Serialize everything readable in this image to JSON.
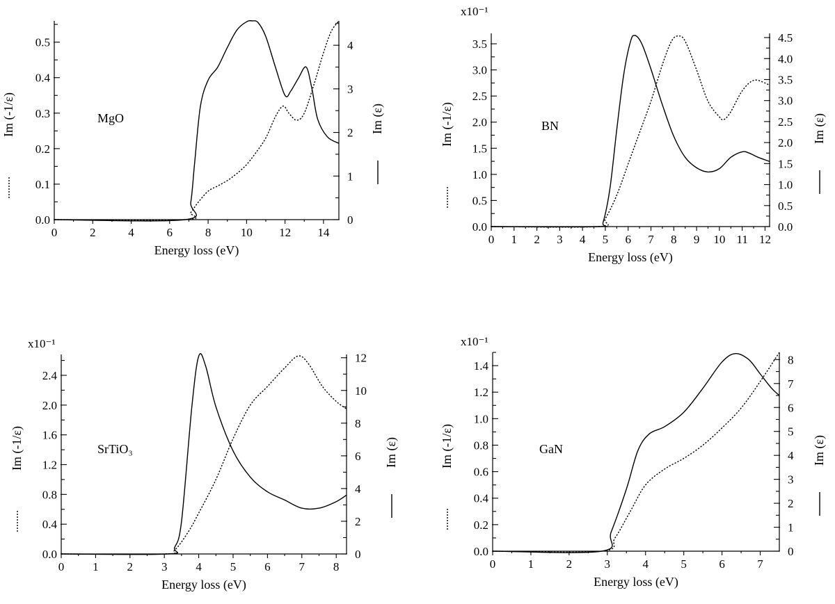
{
  "chart_data": [
    {
      "type": "line",
      "material": "MgO",
      "xlabel": "Energy loss (eV)",
      "ylabel_left": "Im (-1/ε)",
      "ylabel_right": "Im (ε)",
      "sci_label": "",
      "xlim": [
        0,
        14.8
      ],
      "ylim_left": [
        0,
        0.56
      ],
      "ylim_right": [
        0,
        4.56
      ],
      "xticks": [
        0,
        2,
        4,
        6,
        8,
        10,
        12,
        14
      ],
      "xtick_labels": [
        "0",
        "2",
        "4",
        "6",
        "8",
        "10",
        "12",
        "14"
      ],
      "yticks_left": [
        0,
        0.1,
        0.2,
        0.3,
        0.4,
        0.5
      ],
      "ytick_labels_left": [
        "0.0",
        "0.1",
        "0.2",
        "0.3",
        "0.4",
        "0.5"
      ],
      "yticks_right": [
        0,
        1,
        2,
        3,
        4
      ],
      "ytick_labels_right": [
        "0",
        "1",
        "2",
        "3",
        "4"
      ],
      "series": [
        {
          "name": "Im (-1/ε)",
          "style": "dotted",
          "axis": "left",
          "x": [
            0,
            6.8,
            7.1,
            7.5,
            8.0,
            8.5,
            9.0,
            9.5,
            10.0,
            10.5,
            11.0,
            11.5,
            11.9,
            12.2,
            12.6,
            13.0,
            13.5,
            14.0,
            14.4,
            14.8
          ],
          "y": [
            0,
            0,
            0.02,
            0.05,
            0.08,
            0.095,
            0.11,
            0.13,
            0.155,
            0.19,
            0.23,
            0.29,
            0.32,
            0.3,
            0.28,
            0.3,
            0.38,
            0.47,
            0.53,
            0.56
          ]
        },
        {
          "name": "Im (ε)",
          "style": "solid",
          "axis": "right",
          "x": [
            0,
            6.8,
            7.1,
            7.3,
            7.6,
            8.0,
            8.5,
            9.0,
            9.5,
            10.0,
            10.3,
            10.6,
            11.0,
            11.5,
            12.0,
            12.3,
            12.7,
            13.1,
            13.4,
            13.7,
            14.2,
            14.8
          ],
          "y": [
            0,
            0,
            0.4,
            1.3,
            2.6,
            3.2,
            3.5,
            3.95,
            4.35,
            4.54,
            4.56,
            4.52,
            4.2,
            3.5,
            2.85,
            2.95,
            3.25,
            3.5,
            3.0,
            2.3,
            1.9,
            1.75
          ]
        }
      ]
    },
    {
      "type": "line",
      "material": "BN",
      "xlabel": "Energy loss (eV)",
      "ylabel_left": "Im (-1/ε)",
      "ylabel_right": "Im (ε)",
      "sci_label": "x10⁻¹",
      "xlim": [
        0,
        12.2
      ],
      "ylim_left": [
        0,
        3.7
      ],
      "ylim_right": [
        0,
        4.6
      ],
      "xticks": [
        0,
        1,
        2,
        3,
        4,
        5,
        6,
        7,
        8,
        9,
        10,
        11,
        12
      ],
      "xtick_labels": [
        "0",
        "1",
        "2",
        "3",
        "4",
        "5",
        "6",
        "7",
        "8",
        "9",
        "10",
        "11",
        "12"
      ],
      "yticks_left": [
        0,
        0.5,
        1.0,
        1.5,
        2.0,
        2.5,
        3.0,
        3.5
      ],
      "ytick_labels_left": [
        "0.0",
        "0.5",
        "1.0",
        "1.5",
        "2.0",
        "2.5",
        "3.0",
        "3.5"
      ],
      "yticks_right": [
        0,
        0.5,
        1.0,
        1.5,
        2.0,
        2.5,
        3.0,
        3.5,
        4.0,
        4.5
      ],
      "ytick_labels_right": [
        "0.0",
        "0.5",
        "1.0",
        "1.5",
        "2.0",
        "2.5",
        "3.0",
        "3.5",
        "4.0",
        "4.5"
      ],
      "series": [
        {
          "name": "Im (-1/ε)",
          "style": "dotted",
          "axis": "left",
          "x": [
            0,
            4.7,
            5.0,
            5.5,
            6.0,
            6.5,
            7.0,
            7.5,
            7.9,
            8.2,
            8.5,
            9.0,
            9.5,
            10.0,
            10.2,
            10.5,
            11.0,
            11.5,
            12.0,
            12.2
          ],
          "y": [
            0,
            0,
            0.15,
            0.6,
            1.2,
            1.8,
            2.4,
            3.1,
            3.55,
            3.65,
            3.55,
            3.0,
            2.4,
            2.1,
            2.05,
            2.2,
            2.6,
            2.8,
            2.75,
            2.7
          ]
        },
        {
          "name": "Im (ε)",
          "style": "solid",
          "axis": "right",
          "x": [
            0,
            4.7,
            4.9,
            5.2,
            5.5,
            5.8,
            6.1,
            6.3,
            6.6,
            7.0,
            7.5,
            8.0,
            8.5,
            9.0,
            9.5,
            10.0,
            10.5,
            11.0,
            11.3,
            11.7,
            12.2
          ],
          "y": [
            0,
            0,
            0.1,
            0.9,
            2.3,
            3.6,
            4.4,
            4.55,
            4.35,
            3.75,
            2.9,
            2.15,
            1.65,
            1.4,
            1.3,
            1.38,
            1.65,
            1.78,
            1.75,
            1.65,
            1.55
          ]
        }
      ]
    },
    {
      "type": "line",
      "material": "SrTiO₃",
      "xlabel": "Energy loss (eV)",
      "ylabel_left": "Im (-1/ε)",
      "ylabel_right": "Im (ε)",
      "sci_label": "x10⁻¹",
      "xlim": [
        0,
        8.3
      ],
      "ylim_left": [
        0,
        2.68
      ],
      "ylim_right": [
        0,
        12.2
      ],
      "xticks": [
        0,
        1,
        2,
        3,
        4,
        5,
        6,
        7,
        8
      ],
      "xtick_labels": [
        "0",
        "1",
        "2",
        "3",
        "4",
        "5",
        "6",
        "7",
        "8"
      ],
      "yticks_left": [
        0,
        0.4,
        0.8,
        1.2,
        1.6,
        2.0,
        2.4
      ],
      "ytick_labels_left": [
        "0.0",
        "0.4",
        "0.8",
        "1.2",
        "1.6",
        "2.0",
        "2.4"
      ],
      "yticks_right": [
        0,
        2,
        4,
        6,
        8,
        10,
        12
      ],
      "ytick_labels_right": [
        "0",
        "2",
        "4",
        "6",
        "8",
        "10",
        "12"
      ],
      "series": [
        {
          "name": "Im (-1/ε)",
          "style": "dotted",
          "axis": "left",
          "x": [
            0,
            3.0,
            3.3,
            3.7,
            4.0,
            4.5,
            5.0,
            5.5,
            6.0,
            6.5,
            6.9,
            7.2,
            7.6,
            8.0,
            8.3
          ],
          "y": [
            0,
            0,
            0.05,
            0.3,
            0.55,
            1.0,
            1.55,
            2.0,
            2.25,
            2.5,
            2.66,
            2.55,
            2.25,
            2.05,
            1.95
          ]
        },
        {
          "name": "Im (ε)",
          "style": "solid",
          "axis": "right",
          "x": [
            0,
            3.1,
            3.3,
            3.5,
            3.8,
            4.0,
            4.2,
            4.5,
            5.0,
            5.5,
            6.0,
            6.5,
            7.0,
            7.5,
            8.0,
            8.3
          ],
          "y": [
            0,
            0,
            0.4,
            2.0,
            9.0,
            12.1,
            11.5,
            9.0,
            6.3,
            4.7,
            3.8,
            3.3,
            2.8,
            2.8,
            3.2,
            3.6
          ]
        }
      ]
    },
    {
      "type": "line",
      "material": "GaN",
      "xlabel": "Energy loss (eV)",
      "ylabel_left": "Im (-1/ε)",
      "ylabel_right": "Im (ε)",
      "sci_label": "x10⁻¹",
      "xlim": [
        0,
        7.5
      ],
      "ylim_left": [
        0,
        1.5
      ],
      "ylim_right": [
        0,
        8.3
      ],
      "xticks": [
        0,
        1,
        2,
        3,
        4,
        5,
        6,
        7
      ],
      "xtick_labels": [
        "0",
        "1",
        "2",
        "3",
        "4",
        "5",
        "6",
        "7"
      ],
      "yticks_left": [
        0,
        0.2,
        0.4,
        0.6,
        0.8,
        1.0,
        1.2,
        1.4
      ],
      "ytick_labels_left": [
        "0.0",
        "0.2",
        "0.4",
        "0.6",
        "0.8",
        "1.0",
        "1.2",
        "1.4"
      ],
      "yticks_right": [
        0,
        1,
        2,
        3,
        4,
        5,
        6,
        7,
        8
      ],
      "ytick_labels_right": [
        "0",
        "1",
        "2",
        "3",
        "4",
        "5",
        "6",
        "7",
        "8"
      ],
      "series": [
        {
          "name": "Im (-1/ε)",
          "style": "dotted",
          "axis": "left",
          "x": [
            0,
            2.85,
            3.2,
            3.6,
            4.0,
            4.5,
            5.0,
            5.5,
            6.0,
            6.5,
            7.0,
            7.5
          ],
          "y": [
            0,
            0,
            0.1,
            0.3,
            0.5,
            0.62,
            0.7,
            0.8,
            0.93,
            1.08,
            1.28,
            1.5
          ]
        },
        {
          "name": "Im (ε)",
          "style": "solid",
          "axis": "right",
          "x": [
            0,
            2.85,
            3.1,
            3.5,
            3.8,
            4.1,
            4.5,
            5.0,
            5.5,
            6.0,
            6.35,
            6.7,
            7.0,
            7.3,
            7.5
          ],
          "y": [
            0,
            0,
            0.8,
            2.6,
            4.2,
            4.9,
            5.2,
            5.8,
            6.8,
            7.9,
            8.25,
            8.0,
            7.4,
            6.8,
            6.5
          ]
        }
      ]
    }
  ]
}
